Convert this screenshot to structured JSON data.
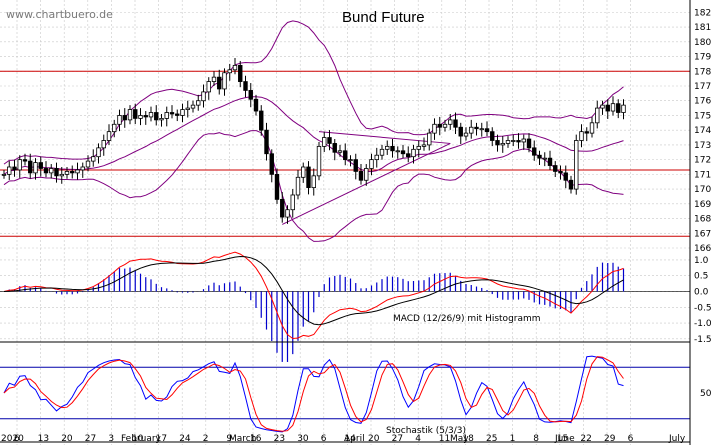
{
  "watermark": "www.chartbuero.de",
  "chart_data": {
    "type": "candlestick",
    "title": "Bund Future",
    "price_axis": {
      "ticks": [
        182,
        181,
        180,
        179,
        178,
        177,
        176,
        175,
        174,
        173,
        172,
        171,
        170,
        169,
        168,
        167,
        166
      ],
      "range": [
        166,
        182.5
      ]
    },
    "x_labels": {
      "year": "2020",
      "dates": [
        "6",
        "13",
        "20",
        "27",
        "3",
        "10",
        "17",
        "24",
        "2",
        "9",
        "16",
        "23",
        "30",
        "6",
        "14",
        "20",
        "27",
        "4",
        "11",
        "18",
        "25",
        "1",
        "8",
        "15",
        "22",
        "29",
        "6"
      ],
      "months": [
        "February",
        "March",
        "April",
        "May",
        "June",
        "July"
      ]
    },
    "horizontal_lines": [
      178.0,
      171.3,
      166.8
    ],
    "close": [
      171,
      171.5,
      171.3,
      172,
      171.9,
      171.1,
      171.8,
      171.4,
      171.1,
      171.4,
      170.9,
      171,
      171.2,
      171.1,
      171.3,
      171.5,
      171.9,
      172.2,
      172.8,
      173.3,
      173.9,
      174.4,
      175,
      174.7,
      175.4,
      174.8,
      175,
      174.9,
      175.2,
      174.7,
      174.8,
      175.2,
      175.1,
      175,
      175.4,
      175.5,
      175.7,
      176,
      176.6,
      177.3,
      177.6,
      176.8,
      177.9,
      178.1,
      178.4,
      177.3,
      176.7,
      176.1,
      175.3,
      174,
      172.4,
      171,
      169.3,
      168.1,
      168.6,
      169.6,
      170.8,
      171.5,
      170.1,
      170.9,
      172.9,
      173.5,
      173.1,
      172.5,
      172.6,
      172,
      172,
      171.2,
      170.6,
      171.4,
      172,
      172.3,
      172.7,
      172.9,
      172.6,
      172.6,
      172.4,
      172.2,
      172.7,
      172.9,
      173,
      173.8,
      174.4,
      174.2,
      174.4,
      174.7,
      174.2,
      173.6,
      173.8,
      174.2,
      174.1,
      174.1,
      173.9,
      173.3,
      173,
      173.1,
      173.3,
      173.3,
      173.2,
      173.4,
      172.8,
      172.3,
      172.1,
      172.1,
      171.6,
      171.2,
      171.1,
      170.6,
      170,
      173.3,
      173.9,
      173.8,
      174.5,
      175.5,
      175.7,
      175.3,
      175.8,
      175.2,
      175.7
    ],
    "bollinger": {
      "period": 20,
      "bands": [
        "upper",
        "middle",
        "lower"
      ]
    },
    "macd": {
      "label": "MACD (12/26/9) mit Histogramm",
      "ticks": [
        1.0,
        0.5,
        0.0,
        -0.5,
        -1.0,
        -1.5
      ],
      "range": [
        -1.6,
        1.25
      ]
    },
    "stochastic": {
      "label": "Stochastik (5/3/3)",
      "ticks": [
        50
      ],
      "range": [
        0,
        100
      ],
      "levels": [
        80,
        20
      ]
    },
    "colors": {
      "support": "#cc0000",
      "band": "#800080",
      "fast": "#0000ff",
      "slow": "#ff0000",
      "signal": "#000000",
      "histogram": "#0000cc",
      "grid": "#c8c8c8"
    }
  }
}
